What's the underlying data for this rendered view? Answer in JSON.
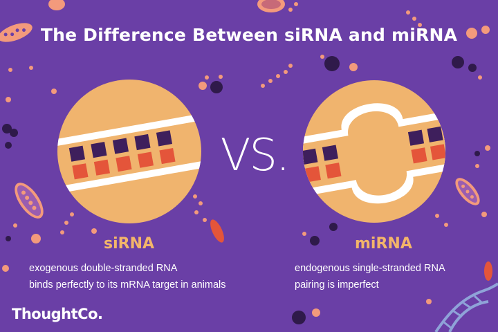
{
  "title": "The Difference Between siRNA and miRNA",
  "vs_label": "VS.",
  "left": {
    "heading": "siRNA",
    "lines": [
      "exogenous double-stranded RNA",
      "binds perfectly to its mRNA target in animals"
    ]
  },
  "right": {
    "heading": "miRNA",
    "lines": [
      "endogenous single-stranded RNA",
      "pairing is imperfect"
    ]
  },
  "logo": "ThoughtCo.",
  "colors": {
    "background": "#6a3fa6",
    "circle": "#f0b46e",
    "strand": "#ffffff",
    "base_dark": "#3e1f5c",
    "base_red": "#e4553a",
    "heading": "#f3b56a",
    "accent": "#f39a7c",
    "dna_helix": "#8fa3d8"
  }
}
